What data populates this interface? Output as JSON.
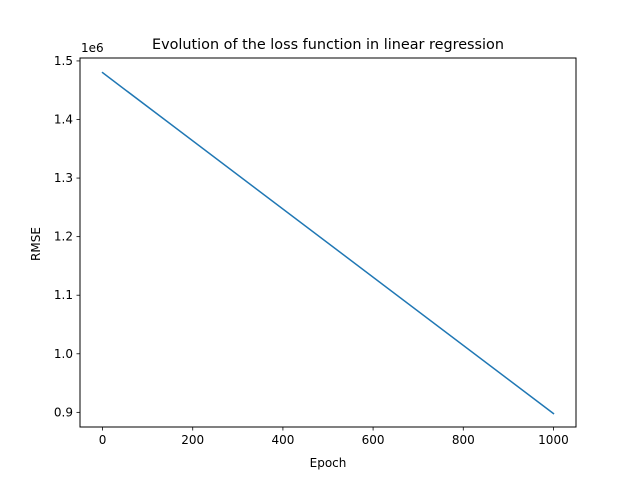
{
  "chart_data": {
    "type": "line",
    "title": "Evolution of the loss function in linear regression",
    "xlabel": "Epoch",
    "ylabel": "RMSE",
    "y_offset_label": "1e6",
    "xlim": [
      -50,
      1050
    ],
    "ylim": [
      0.875,
      1.505
    ],
    "x_ticks": [
      0,
      200,
      400,
      600,
      800,
      1000
    ],
    "x_tick_labels": [
      "0",
      "200",
      "400",
      "600",
      "800",
      "1000"
    ],
    "y_ticks": [
      0.9,
      1.0,
      1.1,
      1.2,
      1.3,
      1.4,
      1.5
    ],
    "y_tick_labels": [
      "0.9",
      "1.0",
      "1.1",
      "1.2",
      "1.3",
      "1.4",
      "1.5"
    ],
    "grid": false,
    "series": [
      {
        "color": "#1f77b4",
        "x": [
          0,
          1000
        ],
        "y": [
          1.48,
          0.898
        ]
      }
    ]
  }
}
